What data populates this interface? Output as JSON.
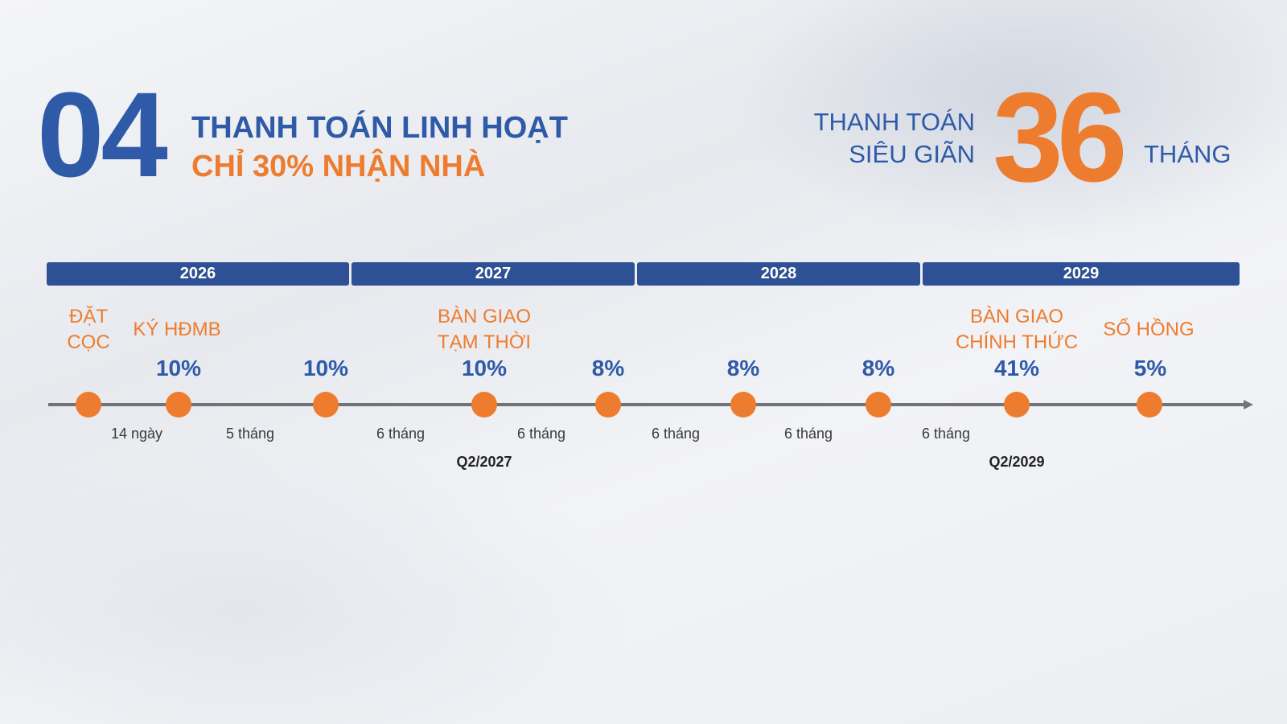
{
  "header": {
    "section_number": "04",
    "title_line1": "THANH TOÁN LINH HOẠT",
    "title_line2": "CHỈ 30% NHẬN NHÀ",
    "right_line1": "THANH TOÁN",
    "right_line2": "SIÊU GIÃN",
    "right_big_number": "36",
    "right_unit": "THÁNG"
  },
  "colors": {
    "primary_blue": "#2e5aa8",
    "bar_blue": "#2e5094",
    "accent_orange": "#ee7c2e",
    "axis_gray": "#707378"
  },
  "years": [
    "2026",
    "2027",
    "2028",
    "2029"
  ],
  "milestones": {
    "dat_coc": [
      "ĐẶT",
      "CỌC"
    ],
    "ky_hdmb": "KÝ HĐMB",
    "ban_giao_tam_thoi": [
      "BÀN GIAO",
      "TẠM THỜI"
    ],
    "ban_giao_chinh_thuc": [
      "BÀN GIAO",
      "CHÍNH THỨC"
    ],
    "so_hong": "SỔ HỒNG"
  },
  "percentages": [
    "10%",
    "10%",
    "10%",
    "8%",
    "8%",
    "8%",
    "41%",
    "5%"
  ],
  "intervals": [
    "14 ngày",
    "5 tháng",
    "6 tháng",
    "6 tháng",
    "6 tháng",
    "6 tháng",
    "6 tháng"
  ],
  "quarters": [
    "Q2/2027",
    "Q2/2029"
  ]
}
